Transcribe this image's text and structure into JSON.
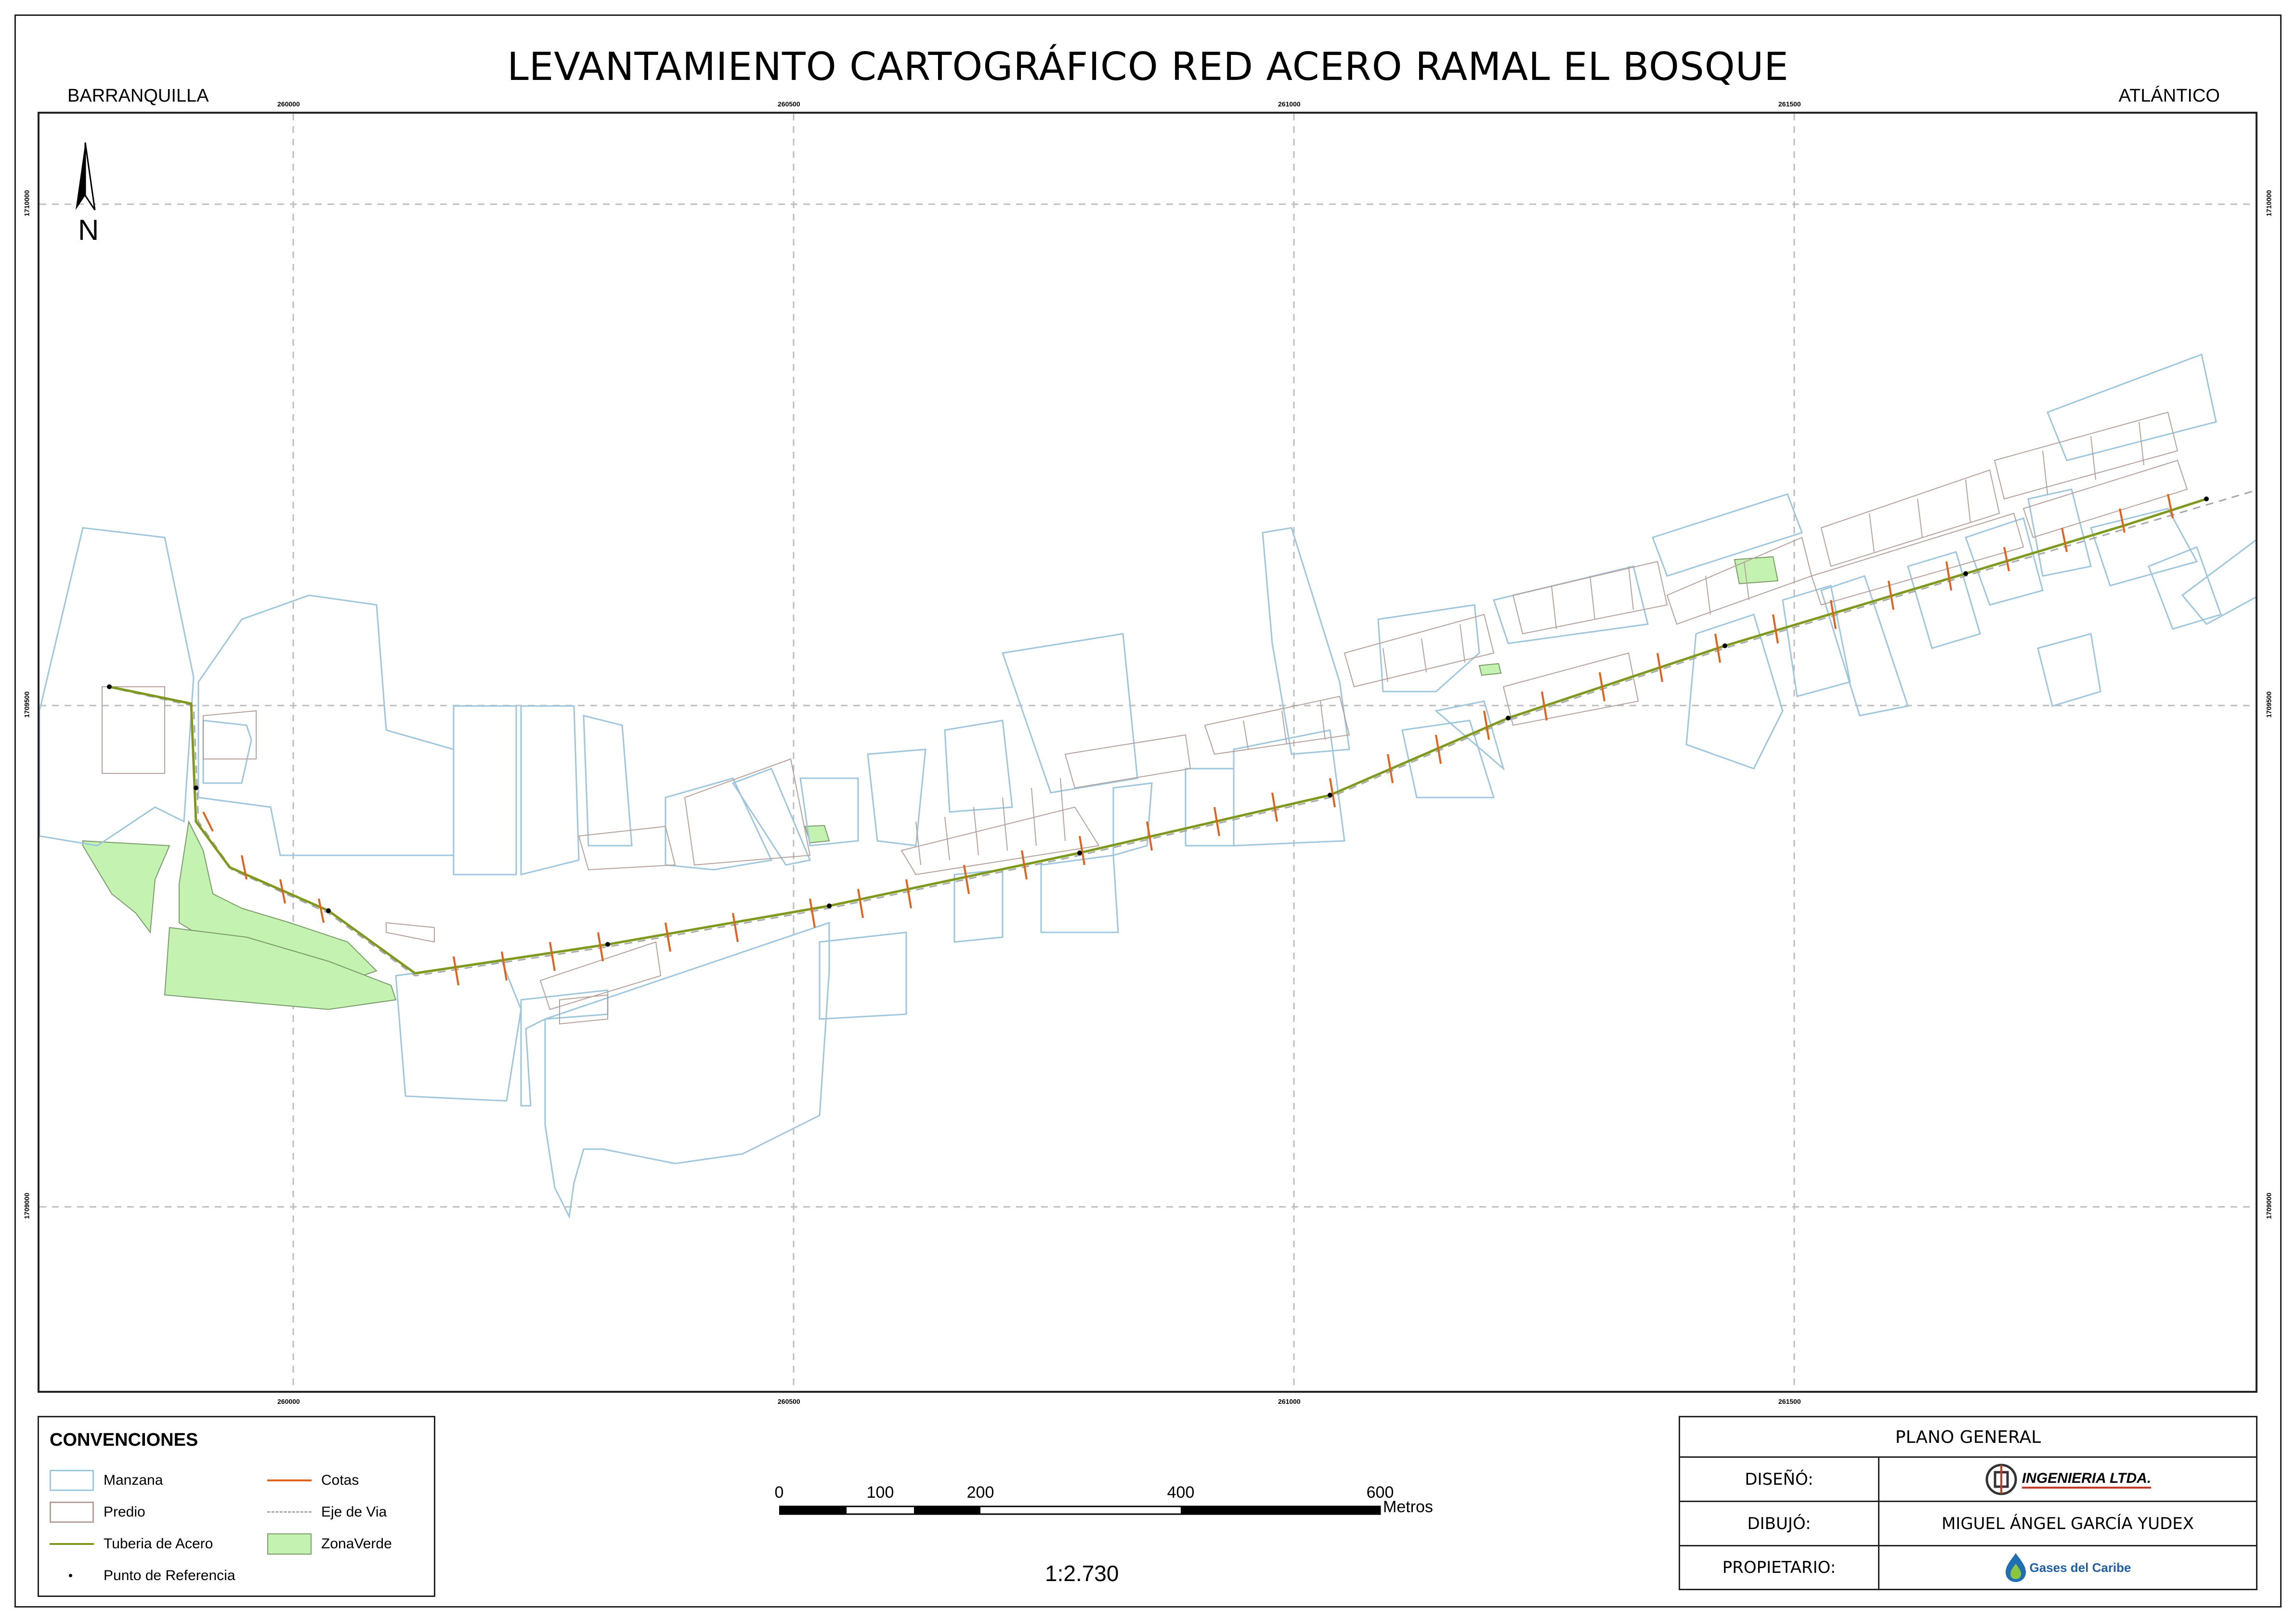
{
  "title": "LEVANTAMIENTO CARTOGRÁFICO RED ACERO RAMAL EL BOSQUE",
  "city": "BARRANQUILLA",
  "department": "ATLÁNTICO",
  "north_arrow": {
    "label": "N",
    "icon": "north-arrow-icon"
  },
  "grid": {
    "x_ticks": [
      "260000",
      "260500",
      "261000",
      "261500"
    ],
    "y_ticks": [
      "1710000",
      "1709500",
      "1709000"
    ]
  },
  "legend": {
    "heading": "CONVENCIONES",
    "items": [
      {
        "label": "Manzana",
        "symbol": "outline-box",
        "color": "#9ec6dc"
      },
      {
        "label": "Cotas",
        "symbol": "line",
        "color": "#e2611b"
      },
      {
        "label": "Predio",
        "symbol": "outline-box",
        "color": "#b6a09a"
      },
      {
        "label": "Eje de Via",
        "symbol": "dashed-line",
        "color": "#a6a6a6"
      },
      {
        "label": "Tuberia de Acero",
        "symbol": "line",
        "color": "#7d9a1e"
      },
      {
        "label": "ZonaVerde",
        "symbol": "fill-box",
        "color": "#c4f2b0"
      },
      {
        "label": "Punto de Referencia",
        "symbol": "dot",
        "color": "#000000"
      }
    ]
  },
  "scale_bar": {
    "labels": [
      "0",
      "100",
      "200",
      "400",
      "600"
    ],
    "unit": "Metros"
  },
  "scale_ratio": "1:2.730",
  "title_block": {
    "heading": "PLANO GENERAL",
    "rows": [
      {
        "label": "DISEÑÓ:",
        "value": "INGENIERIA LTDA.",
        "type": "logo"
      },
      {
        "label": "DIBUJÓ:",
        "value": "MIGUEL ÁNGEL GARCÍA YUDEX",
        "type": "text"
      },
      {
        "label": "PROPIETARIO:",
        "value": "Gases del Caribe",
        "type": "logo"
      }
    ]
  }
}
